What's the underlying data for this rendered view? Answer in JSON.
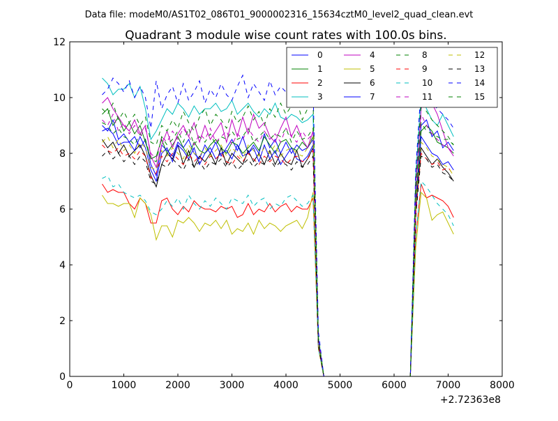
{
  "figure": {
    "suptitle": "Data file: modeM0/AS1T02_086T01_9000002316_15634cztM0_level2_quad_clean.evt"
  },
  "chart_data": {
    "type": "line",
    "title": "Quadrant 3 module wise count rates with 100.0s bins.",
    "xlabel": "",
    "ylabel": "",
    "x_offset_label": "+2.72363e8",
    "xlim": [
      0,
      8000
    ],
    "ylim": [
      0,
      12
    ],
    "xticks": [
      0,
      1000,
      2000,
      3000,
      4000,
      5000,
      6000,
      7000,
      8000
    ],
    "yticks": [
      0,
      2,
      4,
      6,
      8,
      10,
      12
    ],
    "grid": false,
    "legend": {
      "placement": "top-right",
      "columns": 4
    },
    "x": [
      600,
      700,
      800,
      900,
      1000,
      1100,
      1200,
      1300,
      1400,
      1500,
      1600,
      1700,
      1800,
      1900,
      2000,
      2100,
      2200,
      2300,
      2400,
      2500,
      2600,
      2700,
      2800,
      2900,
      3000,
      3100,
      3200,
      3300,
      3400,
      3500,
      3600,
      3700,
      3800,
      3900,
      4000,
      4100,
      4200,
      4300,
      4400,
      4500,
      4600,
      4700,
      4800,
      4900,
      5000,
      5100,
      5200,
      5300,
      5400,
      5500,
      5600,
      5700,
      5800,
      5900,
      6000,
      6100,
      6200,
      6300,
      6400,
      6500,
      6600,
      6700,
      6800,
      6900,
      7000,
      7100
    ],
    "series": [
      {
        "name": "0",
        "color": "#0000ff",
        "dash": "solid",
        "values": [
          9.0,
          8.8,
          9.2,
          8.5,
          8.7,
          8.4,
          8.6,
          8.2,
          8.5,
          7.6,
          7.2,
          8.3,
          8.1,
          7.9,
          8.4,
          8.2,
          8.5,
          8.0,
          7.8,
          8.3,
          8.0,
          8.4,
          7.9,
          8.2,
          8.5,
          8.1,
          8.6,
          8.0,
          8.3,
          8.0,
          8.7,
          8.2,
          8.5,
          8.0,
          8.4,
          8.0,
          8.3,
          8.1,
          8.2,
          8.5,
          1.2,
          0,
          0,
          0,
          0,
          0,
          0,
          0,
          0,
          0,
          0,
          0,
          0,
          0,
          0,
          0,
          0,
          0,
          6.2,
          9.0,
          9.2,
          8.6,
          8.8,
          8.2,
          8.4,
          8.1
        ]
      },
      {
        "name": "1",
        "color": "#008000",
        "dash": "solid",
        "values": [
          9.4,
          9.6,
          9.0,
          9.3,
          8.8,
          9.1,
          8.7,
          9.0,
          8.4,
          7.8,
          7.9,
          8.5,
          8.0,
          8.3,
          8.6,
          8.2,
          7.9,
          8.4,
          8.1,
          8.0,
          8.3,
          8.5,
          8.2,
          8.0,
          8.4,
          8.3,
          8.0,
          8.2,
          8.4,
          8.1,
          8.6,
          8.3,
          8.0,
          8.4,
          8.5,
          8.2,
          8.1,
          8.4,
          8.2,
          8.6,
          1.3,
          0,
          0,
          0,
          0,
          0,
          0,
          0,
          0,
          0,
          0,
          0,
          0,
          0,
          0,
          0,
          0,
          0,
          6.3,
          8.8,
          9.0,
          8.8,
          8.4,
          8.3,
          8.2,
          8.0
        ]
      },
      {
        "name": "2",
        "color": "#ff0000",
        "dash": "solid",
        "values": [
          6.9,
          6.6,
          6.7,
          6.6,
          6.6,
          6.2,
          6.0,
          6.4,
          6.2,
          5.5,
          5.5,
          6.3,
          6.4,
          6.0,
          5.8,
          6.1,
          5.9,
          6.3,
          6.1,
          6.0,
          6.0,
          5.9,
          6.1,
          6.0,
          6.1,
          5.7,
          5.8,
          6.2,
          5.8,
          6.0,
          5.9,
          6.2,
          5.9,
          6.1,
          6.2,
          5.9,
          6.1,
          6.0,
          6.0,
          6.4,
          1.0,
          0,
          0,
          0,
          0,
          0,
          0,
          0,
          0,
          0,
          0,
          0,
          0,
          0,
          0,
          0,
          0,
          0,
          5.0,
          6.9,
          6.4,
          6.5,
          6.4,
          6.3,
          6.1,
          5.7
        ]
      },
      {
        "name": "3",
        "color": "#00bfbf",
        "dash": "solid",
        "values": [
          10.7,
          10.5,
          10.1,
          10.3,
          10.3,
          10.5,
          10.0,
          10.4,
          9.6,
          8.5,
          8.8,
          9.2,
          9.6,
          9.4,
          9.8,
          9.6,
          9.3,
          9.7,
          9.4,
          9.6,
          9.6,
          9.8,
          9.5,
          9.6,
          9.9,
          9.4,
          9.6,
          9.8,
          9.5,
          9.3,
          9.6,
          9.4,
          9.8,
          9.3,
          9.2,
          9.4,
          9.3,
          9.1,
          9.2,
          9.4,
          1.4,
          0,
          0,
          0,
          0,
          0,
          0,
          0,
          0,
          0,
          0,
          0,
          0,
          0,
          0,
          0,
          0,
          0,
          7.2,
          10.1,
          9.6,
          9.2,
          9.0,
          9.4,
          9.0,
          8.6
        ]
      },
      {
        "name": "4",
        "color": "#bf00bf",
        "dash": "solid",
        "values": [
          9.8,
          10.0,
          9.6,
          9.3,
          9.0,
          8.8,
          9.2,
          8.7,
          9.0,
          7.9,
          7.5,
          8.3,
          8.8,
          8.2,
          8.7,
          9.0,
          8.6,
          9.1,
          8.4,
          9.0,
          8.5,
          8.8,
          9.1,
          8.4,
          9.2,
          8.6,
          9.3,
          8.7,
          9.4,
          8.9,
          9.1,
          8.6,
          8.4,
          8.9,
          9.3,
          8.6,
          9.0,
          8.5,
          8.2,
          8.8,
          1.3,
          0,
          0,
          0,
          0,
          0,
          0,
          0,
          0,
          0,
          0,
          0,
          0,
          0,
          0,
          0,
          0,
          0,
          6.8,
          9.6,
          10.2,
          9.8,
          9.4,
          8.8,
          8.2,
          7.9
        ]
      },
      {
        "name": "5",
        "color": "#bfbf00",
        "dash": "solid",
        "values": [
          6.5,
          6.2,
          6.2,
          6.1,
          6.2,
          6.2,
          5.7,
          6.4,
          6.2,
          5.8,
          4.9,
          5.4,
          5.4,
          5.0,
          5.6,
          5.5,
          5.7,
          5.5,
          5.2,
          5.5,
          5.4,
          5.6,
          5.3,
          5.6,
          5.1,
          5.3,
          5.2,
          5.5,
          5.1,
          5.6,
          5.3,
          5.5,
          5.4,
          5.2,
          5.4,
          5.5,
          5.6,
          5.3,
          5.7,
          6.6,
          1.0,
          0,
          0,
          0,
          0,
          0,
          0,
          0,
          0,
          0,
          0,
          0,
          0,
          0,
          0,
          0,
          0,
          0,
          4.6,
          6.6,
          6.4,
          5.6,
          5.8,
          5.9,
          5.5,
          5.1
        ]
      },
      {
        "name": "6",
        "color": "#000000",
        "dash": "solid",
        "values": [
          8.5,
          8.2,
          8.4,
          8.0,
          8.3,
          7.9,
          8.1,
          8.3,
          7.9,
          7.2,
          6.8,
          7.6,
          8.0,
          7.8,
          8.3,
          7.6,
          8.1,
          7.5,
          7.9,
          7.7,
          8.0,
          7.6,
          8.2,
          7.6,
          8.0,
          7.8,
          7.6,
          8.1,
          7.7,
          8.0,
          7.6,
          8.1,
          7.6,
          8.0,
          7.7,
          7.6,
          8.1,
          7.5,
          7.8,
          8.2,
          1.1,
          0,
          0,
          0,
          0,
          0,
          0,
          0,
          0,
          0,
          0,
          0,
          0,
          0,
          0,
          0,
          0,
          0,
          5.9,
          8.2,
          7.9,
          7.6,
          7.8,
          7.5,
          7.3,
          7.0
        ]
      },
      {
        "name": "7",
        "color": "#0000ff",
        "dash": "solid",
        "values": [
          8.8,
          8.9,
          8.7,
          8.3,
          8.4,
          8.4,
          8.1,
          8.6,
          8.2,
          7.4,
          7.0,
          8.0,
          8.2,
          7.7,
          8.3,
          8.1,
          7.8,
          8.2,
          7.6,
          8.0,
          8.2,
          7.8,
          8.0,
          8.1,
          7.8,
          8.3,
          7.9,
          8.0,
          8.2,
          7.7,
          8.3,
          7.8,
          8.1,
          7.6,
          7.9,
          8.2,
          7.8,
          7.7,
          7.9,
          8.3,
          1.1,
          0,
          0,
          0,
          0,
          0,
          0,
          0,
          0,
          0,
          0,
          0,
          0,
          0,
          0,
          0,
          0,
          0,
          6.0,
          8.6,
          8.3,
          8.0,
          7.9,
          7.6,
          7.7,
          7.4
        ]
      },
      {
        "name": "8",
        "color": "#008000",
        "dash": "dashed",
        "values": [
          9.1,
          9.0,
          8.7,
          8.9,
          8.6,
          8.5,
          8.3,
          8.7,
          8.5,
          7.8,
          7.7,
          8.6,
          8.3,
          8.5,
          8.8,
          8.4,
          8.9,
          8.3,
          8.6,
          8.4,
          8.7,
          8.3,
          8.6,
          8.5,
          8.8,
          8.5,
          8.6,
          8.9,
          8.4,
          8.6,
          8.8,
          8.5,
          8.7,
          8.6,
          8.9,
          8.4,
          8.8,
          8.5,
          8.6,
          8.9,
          1.2,
          0,
          0,
          0,
          0,
          0,
          0,
          0,
          0,
          0,
          0,
          0,
          0,
          0,
          0,
          0,
          0,
          0,
          6.5,
          9.1,
          8.8,
          8.7,
          8.6,
          8.5,
          8.5,
          8.3
        ]
      },
      {
        "name": "9",
        "color": "#ff0000",
        "dash": "dashed",
        "values": [
          8.3,
          8.1,
          8.0,
          8.2,
          7.9,
          8.0,
          7.8,
          8.1,
          7.9,
          7.1,
          7.3,
          7.9,
          7.7,
          8.0,
          7.8,
          7.6,
          8.0,
          7.7,
          7.9,
          7.6,
          7.9,
          7.8,
          8.0,
          7.7,
          7.6,
          7.9,
          7.7,
          8.0,
          7.8,
          7.6,
          7.9,
          7.7,
          7.9,
          7.8,
          7.6,
          7.8,
          7.9,
          7.7,
          7.8,
          8.1,
          1.1,
          0,
          0,
          0,
          0,
          0,
          0,
          0,
          0,
          0,
          0,
          0,
          0,
          0,
          0,
          0,
          0,
          0,
          5.8,
          8.0,
          7.8,
          7.6,
          7.7,
          7.4,
          7.5,
          7.2
        ]
      },
      {
        "name": "10",
        "color": "#00bfbf",
        "dash": "dashed",
        "values": [
          7.1,
          7.2,
          6.8,
          6.9,
          6.6,
          6.5,
          6.4,
          6.5,
          6.3,
          5.9,
          5.8,
          6.0,
          6.3,
          6.1,
          6.4,
          6.0,
          6.5,
          6.2,
          6.0,
          6.3,
          6.1,
          6.4,
          6.2,
          6.0,
          6.4,
          6.3,
          6.2,
          6.5,
          6.1,
          6.3,
          6.4,
          6.0,
          6.2,
          6.1,
          6.4,
          6.5,
          6.3,
          6.1,
          6.2,
          6.5,
          1.0,
          0,
          0,
          0,
          0,
          0,
          0,
          0,
          0,
          0,
          0,
          0,
          0,
          0,
          0,
          0,
          0,
          0,
          5.0,
          7.0,
          6.8,
          6.5,
          6.2,
          6.0,
          5.8,
          5.4
        ]
      },
      {
        "name": "11",
        "color": "#bf00bf",
        "dash": "dashed",
        "values": [
          9.2,
          9.0,
          9.4,
          8.8,
          9.1,
          8.7,
          9.0,
          8.6,
          8.9,
          8.0,
          7.8,
          8.6,
          8.4,
          8.8,
          8.5,
          8.9,
          8.6,
          8.3,
          8.7,
          8.5,
          8.9,
          8.4,
          8.6,
          8.8,
          8.3,
          8.7,
          8.5,
          8.9,
          8.6,
          8.4,
          8.8,
          8.5,
          8.7,
          8.4,
          8.9,
          8.6,
          8.4,
          8.8,
          8.5,
          8.7,
          1.2,
          0,
          0,
          0,
          0,
          0,
          0,
          0,
          0,
          0,
          0,
          0,
          0,
          0,
          0,
          0,
          0,
          0,
          6.6,
          9.4,
          9.0,
          8.7,
          8.5,
          8.3,
          8.2,
          8.0
        ]
      },
      {
        "name": "12",
        "color": "#bfbf00",
        "dash": "dashed",
        "values": [
          8.4,
          8.6,
          8.2,
          8.5,
          8.1,
          8.3,
          8.0,
          8.4,
          8.2,
          7.5,
          7.4,
          8.1,
          7.9,
          8.2,
          8.0,
          7.8,
          8.3,
          8.0,
          7.9,
          8.2,
          7.9,
          8.1,
          8.3,
          7.9,
          8.2,
          8.0,
          7.8,
          8.3,
          8.1,
          7.9,
          8.2,
          8.0,
          8.3,
          7.9,
          8.1,
          8.2,
          8.0,
          7.9,
          8.2,
          8.6,
          1.1,
          0,
          0,
          0,
          0,
          0,
          0,
          0,
          0,
          0,
          0,
          0,
          0,
          0,
          0,
          0,
          0,
          0,
          6.1,
          8.4,
          8.2,
          7.9,
          7.8,
          7.6,
          7.5,
          7.2
        ]
      },
      {
        "name": "13",
        "color": "#000000",
        "dash": "dashed",
        "values": [
          7.9,
          8.1,
          7.8,
          8.0,
          7.7,
          7.9,
          7.6,
          7.9,
          7.7,
          7.0,
          6.9,
          7.6,
          7.5,
          7.8,
          7.6,
          7.4,
          7.8,
          7.5,
          7.7,
          7.4,
          7.7,
          7.6,
          7.8,
          7.5,
          7.7,
          7.4,
          7.6,
          7.8,
          7.5,
          7.7,
          7.6,
          7.8,
          7.5,
          7.7,
          7.6,
          7.4,
          7.7,
          7.5,
          7.6,
          7.9,
          1.1,
          0,
          0,
          0,
          0,
          0,
          0,
          0,
          0,
          0,
          0,
          0,
          0,
          0,
          0,
          0,
          0,
          0,
          5.7,
          7.9,
          7.8,
          7.5,
          7.6,
          7.3,
          7.2,
          7.0
        ]
      },
      {
        "name": "14",
        "color": "#0000ff",
        "dash": "dashed",
        "values": [
          10.1,
          10.3,
          10.7,
          10.5,
          10.2,
          10.6,
          10.0,
          10.4,
          10.0,
          8.9,
          10.6,
          9.6,
          10.1,
          10.4,
          9.8,
          10.5,
          9.9,
          10.2,
          10.6,
          9.8,
          10.3,
          10.0,
          10.5,
          10.1,
          9.9,
          10.4,
          10.8,
          10.0,
          10.5,
          10.2,
          9.9,
          10.6,
          10.1,
          10.4,
          10.2,
          10.8,
          10.0,
          10.6,
          10.9,
          10.4,
          1.6,
          0,
          0,
          0,
          0,
          0,
          0,
          0,
          0,
          0,
          0,
          0,
          0,
          0,
          0,
          0,
          0,
          0,
          7.4,
          10.4,
          10.2,
          9.8,
          9.6,
          9.4,
          9.2,
          8.9
        ]
      },
      {
        "name": "15",
        "color": "#008000",
        "dash": "dashed",
        "values": [
          9.6,
          9.4,
          9.8,
          9.2,
          9.5,
          9.1,
          9.4,
          9.0,
          9.3,
          8.4,
          8.3,
          9.0,
          8.8,
          9.2,
          8.9,
          9.5,
          9.1,
          8.8,
          9.3,
          9.6,
          9.0,
          9.4,
          9.2,
          8.9,
          9.5,
          9.1,
          9.3,
          9.7,
          9.2,
          9.5,
          9.0,
          9.6,
          9.3,
          9.8,
          9.4,
          9.7,
          9.9,
          9.2,
          9.6,
          9.9,
          1.4,
          0,
          0,
          0,
          0,
          0,
          0,
          0,
          0,
          0,
          0,
          0,
          0,
          0,
          0,
          0,
          0,
          0,
          7.0,
          9.8,
          9.5,
          9.2,
          9.0,
          8.8,
          8.6,
          8.3
        ]
      }
    ]
  }
}
